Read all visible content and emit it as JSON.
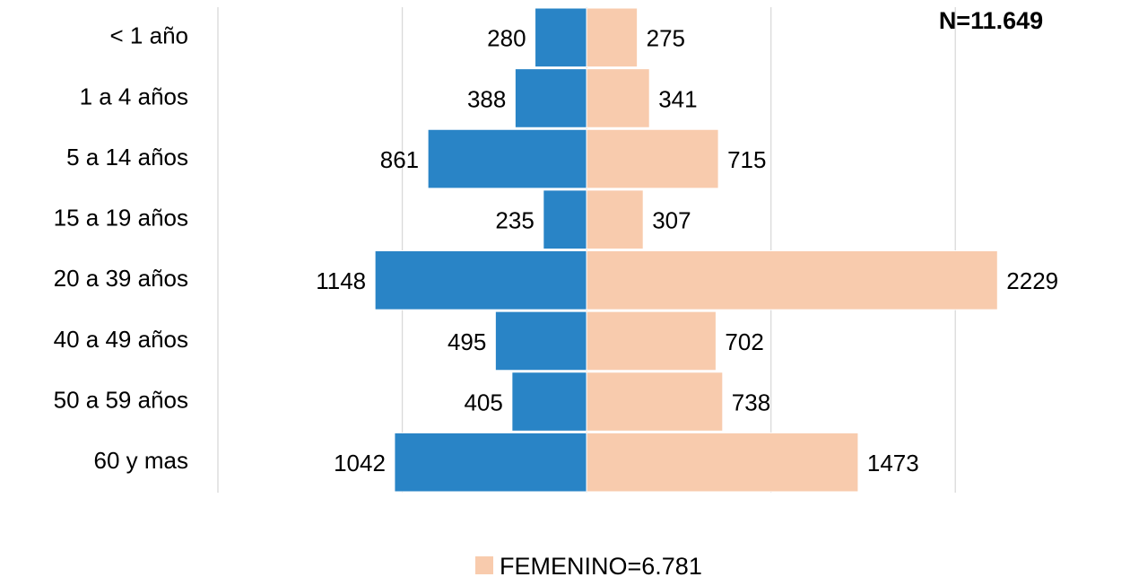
{
  "chart_data": {
    "type": "bar",
    "orientation": "horizontal",
    "categories": [
      "< 1 año",
      "1 a 4 años",
      "5 a 14 años",
      "15 a 19 años",
      "20 a 39 años",
      "40 a 49 años",
      "50 a 59 años",
      "60 y mas"
    ],
    "series": [
      {
        "color": "#2984c6",
        "direction": "left",
        "values": [
          280,
          388,
          861,
          235,
          1148,
          495,
          405,
          1042
        ]
      },
      {
        "name": "FEMENINO=6.781",
        "color": "#f8cbad",
        "direction": "right",
        "values": [
          275,
          341,
          715,
          307,
          2229,
          702,
          738,
          1473
        ]
      }
    ],
    "annotation": "N=11.649",
    "xlim": [
      -2000,
      2500
    ],
    "xticks": [
      -2000,
      -1000,
      0,
      1000,
      2000
    ],
    "grid": true
  }
}
